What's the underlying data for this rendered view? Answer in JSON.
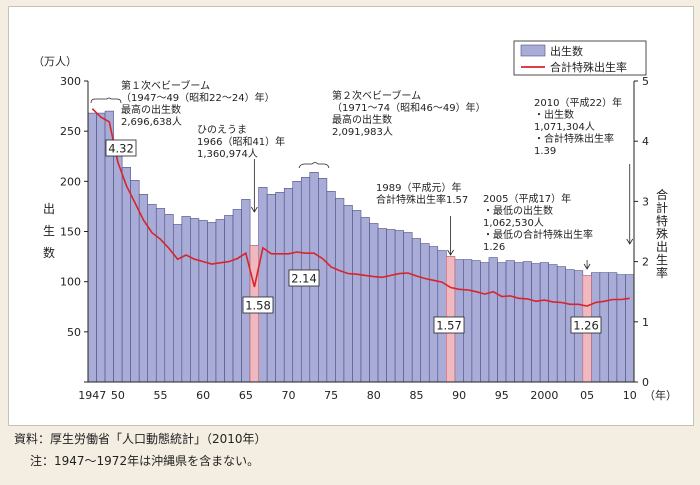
{
  "chart_data": {
    "type": "bar",
    "title": "",
    "units_left": "（万人）",
    "ylabel_left": "出生数",
    "ylabel_right": "合計特殊出生率",
    "x_unit": "（年）",
    "ylim_left": [
      0,
      300
    ],
    "ylim_right": [
      0,
      5
    ],
    "yticks_left": [
      "0",
      "50",
      "100",
      "150",
      "200",
      "250",
      "300"
    ],
    "yticks_right": [
      "0",
      "1",
      "2",
      "3",
      "4",
      "5"
    ],
    "x_tick_labels": [
      {
        "year": 1947,
        "label": "1947"
      },
      {
        "year": 1950,
        "label": "50"
      },
      {
        "year": 1955,
        "label": "55"
      },
      {
        "year": 1960,
        "label": "60"
      },
      {
        "year": 1965,
        "label": "65"
      },
      {
        "year": 1970,
        "label": "70"
      },
      {
        "year": 1975,
        "label": "75"
      },
      {
        "year": 1980,
        "label": "80"
      },
      {
        "year": 1985,
        "label": "85"
      },
      {
        "year": 1990,
        "label": "90"
      },
      {
        "year": 1995,
        "label": "95"
      },
      {
        "year": 2000,
        "label": "2000"
      },
      {
        "year": 2005,
        "label": "05"
      },
      {
        "year": 2010,
        "label": "10"
      }
    ],
    "years": [
      1947,
      1948,
      1949,
      1950,
      1951,
      1952,
      1953,
      1954,
      1955,
      1956,
      1957,
      1958,
      1959,
      1960,
      1961,
      1962,
      1963,
      1964,
      1965,
      1966,
      1967,
      1968,
      1969,
      1970,
      1971,
      1972,
      1973,
      1974,
      1975,
      1976,
      1977,
      1978,
      1979,
      1980,
      1981,
      1982,
      1983,
      1984,
      1985,
      1986,
      1987,
      1988,
      1989,
      1990,
      1991,
      1992,
      1993,
      1994,
      1995,
      1996,
      1997,
      1998,
      1999,
      2000,
      2001,
      2002,
      2003,
      2004,
      2005,
      2006,
      2007,
      2008,
      2009,
      2010
    ],
    "series": [
      {
        "name": "出生数",
        "axis": "left",
        "color": "#a9acd6",
        "values": [
          268,
          268,
          270,
          234,
          214,
          201,
          187,
          177,
          173,
          167,
          157,
          165,
          163,
          161,
          159,
          162,
          166,
          172,
          182,
          136,
          194,
          187,
          189,
          193,
          200,
          204,
          209,
          203,
          190,
          183,
          176,
          171,
          164,
          158,
          153,
          152,
          151,
          149,
          143,
          138,
          135,
          131,
          125,
          122,
          122,
          121,
          119,
          124,
          119,
          121,
          119,
          120,
          118,
          119,
          117,
          115,
          112,
          111,
          106,
          109,
          109,
          109,
          107,
          107
        ]
      },
      {
        "name": "合計特殊出生率",
        "axis": "right",
        "color": "#d8242c",
        "values": [
          4.54,
          4.4,
          4.32,
          3.65,
          3.26,
          2.98,
          2.69,
          2.48,
          2.37,
          2.22,
          2.04,
          2.11,
          2.04,
          2.0,
          1.96,
          1.98,
          2.0,
          2.05,
          2.14,
          1.58,
          2.23,
          2.13,
          2.13,
          2.13,
          2.16,
          2.14,
          2.14,
          2.05,
          1.91,
          1.85,
          1.8,
          1.79,
          1.77,
          1.75,
          1.74,
          1.77,
          1.8,
          1.81,
          1.76,
          1.72,
          1.69,
          1.66,
          1.57,
          1.54,
          1.53,
          1.5,
          1.46,
          1.5,
          1.42,
          1.43,
          1.39,
          1.38,
          1.34,
          1.36,
          1.33,
          1.32,
          1.29,
          1.29,
          1.26,
          1.32,
          1.34,
          1.37,
          1.37,
          1.39
        ]
      }
    ],
    "highlight_years": [
      1966,
      1989,
      2005
    ],
    "legend": {
      "position": "top-right",
      "items": [
        "出生数",
        "合計特殊出生率"
      ]
    },
    "rate_labels": [
      {
        "year": 1949,
        "text": "4.32"
      },
      {
        "year": 1966,
        "text": "1.58"
      },
      {
        "year": 1973,
        "text": "2.14"
      },
      {
        "year": 1989,
        "text": "1.57"
      },
      {
        "year": 2005,
        "text": "1.26"
      }
    ],
    "annotations": {
      "boom1": [
        "第１次ベビーブーム",
        "（1947～49（昭和22～24）年）",
        "最高の出生数",
        "2,696,638人"
      ],
      "hinoe": [
        "ひのえうま",
        "1966（昭和41）年",
        "1,360,974人"
      ],
      "boom2": [
        "第２次ベビーブーム",
        "（1971～74（昭和46～49）年）",
        "最高の出生数",
        "2,091,983人"
      ],
      "y1989": [
        "1989（平成元）年",
        "合計特殊出生率1.57"
      ],
      "y2005": [
        "2005（平成17）年",
        "・最低の出生数",
        "1,062,530人",
        "・最低の合計特殊出生率",
        "1.26"
      ],
      "y2010": [
        "2010（平成22）年",
        "・出生数",
        "1,071,304人",
        "・合計特殊出生率",
        "1.39"
      ]
    }
  },
  "source_note": "資料：厚生労働省「人口動態統計」（2010年）",
  "footnote": "注：1947～1972年は沖縄県を含まない。"
}
